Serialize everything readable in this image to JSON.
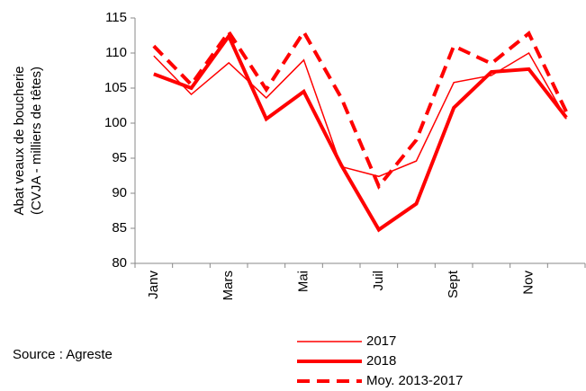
{
  "chart_data": {
    "type": "line",
    "ylabel": [
      "Abat veaux de boucherie",
      "(CVJA - milliers de têtes)"
    ],
    "source": "Source : Agreste",
    "categories": [
      "Janv",
      null,
      "Mars",
      null,
      "Mai",
      null,
      "Juil",
      null,
      "Sept",
      null,
      "Nov",
      null
    ],
    "series": [
      {
        "name": "2017",
        "color": "#ff0000",
        "width": 1.5,
        "dashed": false,
        "values": [
          109.6,
          104.1,
          108.6,
          103.6,
          109,
          93.8,
          92.4,
          94.6,
          105.8,
          106.8,
          110,
          100.6
        ]
      },
      {
        "name": "2018",
        "color": "#ff0000",
        "width": 4,
        "dashed": false,
        "values": [
          107,
          105,
          112.4,
          100.6,
          104.5,
          94,
          84.8,
          88.5,
          102.2,
          107.3,
          107.7,
          100.8
        ]
      },
      {
        "name": "Moy. 2013-2017",
        "color": "#ff0000",
        "width": 4,
        "dashed": true,
        "values": [
          111,
          105.5,
          113,
          104.8,
          113,
          103.6,
          91,
          97.6,
          111,
          108.5,
          112.8,
          101.6
        ]
      }
    ],
    "ylim": [
      80,
      115
    ],
    "yticks": [
      80,
      85,
      90,
      95,
      100,
      105,
      110,
      115
    ],
    "grid": false
  }
}
